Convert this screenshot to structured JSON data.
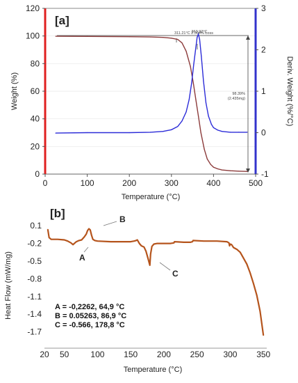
{
  "chart_data": [
    {
      "panel_label": "[a]",
      "type": "line",
      "xlabel": "Temperature (°C)",
      "ylabel": "Weight (%)",
      "y2label": "Deriv. Weight (%/°C)",
      "xlim": [
        0,
        500
      ],
      "ylim": [
        0,
        120
      ],
      "y2lim": [
        -1,
        3
      ],
      "x_ticks": [
        "0",
        "100",
        "200",
        "300",
        "400",
        "500"
      ],
      "y_ticks": [
        "0",
        "20",
        "40",
        "60",
        "80",
        "100",
        "120"
      ],
      "y2_ticks": [
        "-1",
        "0",
        "1",
        "2",
        "3"
      ],
      "colors": {
        "weight": "#8b3a3a",
        "deriv": "#2b2bd8",
        "y_axis": "#e02020",
        "y2_axis": "#3333cc",
        "annotation": "#333333"
      },
      "annotations": {
        "peak": "363.92°C",
        "onset": "311.21°C  2.304% Loss",
        "loss": [
          "98.39%",
          "(2.435mg)"
        ]
      },
      "series": [
        {
          "key": "weight",
          "axis": "left",
          "x": [
            25,
            100,
            200,
            250,
            280,
            300,
            315,
            325,
            335,
            345,
            352,
            358,
            364,
            370,
            378,
            385,
            393,
            400,
            410,
            420,
            440,
            460,
            480
          ],
          "values": [
            99.8,
            99.7,
            99.5,
            99.3,
            99,
            98.4,
            97.5,
            95,
            89,
            78,
            66,
            54,
            42,
            30,
            18,
            11,
            7,
            5,
            3.8,
            3,
            2.4,
            2.1,
            1.9
          ]
        },
        {
          "key": "deriv",
          "axis": "right",
          "x": [
            25,
            100,
            200,
            250,
            280,
            300,
            315,
            325,
            335,
            342,
            348,
            353,
            358,
            361,
            364,
            367,
            371,
            376,
            382,
            388,
            395,
            400,
            410,
            420,
            440,
            460,
            480
          ],
          "values": [
            -0.01,
            0,
            0,
            0.01,
            0.03,
            0.07,
            0.15,
            0.28,
            0.5,
            0.8,
            1.2,
            1.65,
            2.05,
            2.3,
            2.38,
            2.25,
            1.85,
            1.25,
            0.72,
            0.4,
            0.2,
            0.12,
            0.06,
            0.03,
            0.01,
            0.01,
            0.01
          ]
        }
      ]
    },
    {
      "panel_label": "[b]",
      "type": "line",
      "xlabel": "Temperature (°C)",
      "ylabel": "Heat Flow (mW/mg)",
      "xlim": [
        20,
        355
      ],
      "ylim": [
        -1.8,
        0.15
      ],
      "x_ticks": [
        "20",
        "50",
        "100",
        "150",
        "200",
        "250",
        "300",
        "350"
      ],
      "y_ticks": [
        "0.1",
        "-0.2",
        "-0.5",
        "-0.8",
        "-1.1",
        "-1.4",
        "-1.7"
      ],
      "colors": {
        "line": "#b5541c"
      },
      "points": [
        {
          "label": "A",
          "text": "A = -0,2262, 64,9 °C"
        },
        {
          "label": "B",
          "text": "B =  0.05263, 86,9 °C"
        },
        {
          "label": "C",
          "text": "C = -0.566, 178,8 °C"
        }
      ],
      "series": [
        {
          "key": "heatflow",
          "x": [
            25,
            27,
            30,
            40,
            50,
            55,
            60,
            63,
            65,
            68,
            72,
            76,
            80,
            83,
            85,
            87,
            89,
            91,
            93,
            96,
            100,
            120,
            140,
            150,
            155,
            158,
            160,
            163,
            166,
            170,
            173,
            176,
            178.8,
            180,
            182,
            185,
            190,
            200,
            210,
            215,
            216,
            230,
            240,
            243,
            244,
            260,
            280,
            295,
            298,
            299,
            300,
            302,
            305,
            310,
            315,
            320,
            325,
            330,
            335,
            340,
            345,
            350
          ],
          "values": [
            0.04,
            -0.1,
            -0.13,
            -0.13,
            -0.14,
            -0.16,
            -0.19,
            -0.22,
            -0.2,
            -0.17,
            -0.15,
            -0.14,
            -0.09,
            -0.04,
            0.02,
            0.05,
            0.03,
            -0.06,
            -0.13,
            -0.15,
            -0.16,
            -0.17,
            -0.17,
            -0.17,
            -0.16,
            -0.15,
            -0.14,
            -0.2,
            -0.24,
            -0.26,
            -0.33,
            -0.45,
            -0.57,
            -0.38,
            -0.25,
            -0.21,
            -0.2,
            -0.2,
            -0.2,
            -0.19,
            -0.17,
            -0.18,
            -0.18,
            -0.17,
            -0.15,
            -0.16,
            -0.16,
            -0.17,
            -0.19,
            -0.24,
            -0.21,
            -0.22,
            -0.27,
            -0.3,
            -0.35,
            -0.45,
            -0.55,
            -0.7,
            -0.88,
            -1.08,
            -1.35,
            -1.76
          ]
        }
      ]
    }
  ]
}
